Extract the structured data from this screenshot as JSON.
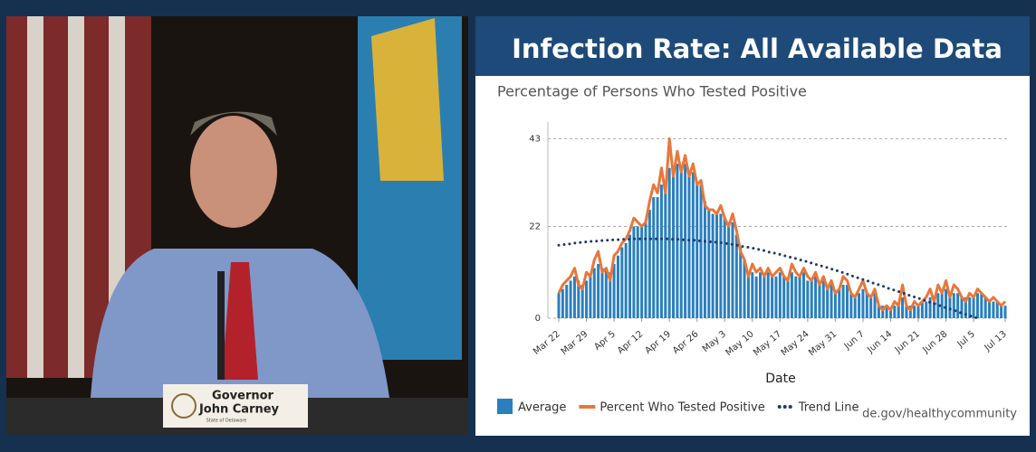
{
  "nameplate": {
    "title": "Governor",
    "name": "John Carney",
    "subtitle": "State of Delaware"
  },
  "chart_data": {
    "type": "bar",
    "title": "Infection Rate: All Available Data",
    "subtitle": "Percentage of Persons Who Tested Positive",
    "x_label": "Date",
    "source": "de.gov/healthycommunity",
    "categories": [
      "Mar 22",
      null,
      null,
      null,
      null,
      null,
      null,
      "Mar 29",
      null,
      null,
      null,
      null,
      null,
      null,
      "Apr 5",
      null,
      null,
      null,
      null,
      null,
      null,
      "Apr 12",
      null,
      null,
      null,
      null,
      null,
      null,
      "Apr 19",
      null,
      null,
      null,
      null,
      null,
      null,
      "Apr 26",
      null,
      null,
      null,
      null,
      null,
      null,
      "May 3",
      null,
      null,
      null,
      null,
      null,
      null,
      "May 10",
      null,
      null,
      null,
      null,
      null,
      null,
      "May 17",
      null,
      null,
      null,
      null,
      null,
      null,
      "May 24",
      null,
      null,
      null,
      null,
      null,
      null,
      "May 31",
      null,
      null,
      null,
      null,
      null,
      null,
      "Jun 7",
      null,
      null,
      null,
      null,
      null,
      null,
      "Jun 14",
      null,
      null,
      null,
      null,
      null,
      null,
      "Jun 21",
      null,
      null,
      null,
      null,
      null,
      null,
      "Jun 28",
      null,
      null,
      null,
      null,
      null,
      null,
      "Jul 5",
      null,
      null,
      null,
      null,
      null,
      null,
      null,
      "Jul 13"
    ],
    "ylim": [
      0,
      47
    ],
    "yticks": [
      0,
      22,
      43
    ],
    "grid": true,
    "series": [
      {
        "name": "Average",
        "type": "bar",
        "color": "#2a7fbf",
        "values": [
          6,
          7,
          8,
          9,
          10,
          9,
          8,
          9,
          10,
          12,
          13,
          12,
          12,
          11,
          13,
          15,
          17,
          18,
          20,
          22,
          22,
          22,
          23,
          26,
          29,
          29,
          32,
          30,
          36,
          35,
          37,
          35,
          37,
          35,
          35,
          32,
          32,
          28,
          26,
          25,
          25,
          25,
          24,
          23,
          23,
          20,
          17,
          14,
          11,
          11,
          10,
          11,
          10,
          11,
          10,
          10,
          11,
          10,
          9,
          11,
          10,
          10,
          11,
          9,
          9,
          10,
          8,
          9,
          7,
          8,
          6,
          7,
          8,
          8,
          6,
          5,
          6,
          7,
          6,
          5,
          6,
          3,
          3,
          3,
          2,
          3,
          3,
          5,
          3,
          3,
          3,
          3,
          4,
          4,
          5,
          4,
          6,
          6,
          7,
          5,
          6,
          6,
          5,
          5,
          5,
          5,
          6,
          6,
          5,
          4,
          4,
          4,
          3,
          3
        ]
      },
      {
        "name": "Percent Who Tested Positive",
        "type": "line",
        "color": "#e8773a",
        "values": [
          6,
          8,
          9,
          10,
          12,
          8,
          7,
          11,
          10,
          14,
          16,
          11,
          12,
          9,
          15,
          16,
          18,
          19,
          21,
          24,
          23,
          22,
          23,
          28,
          32,
          30,
          36,
          30,
          43,
          34,
          40,
          35,
          39,
          34,
          37,
          32,
          33,
          27,
          26,
          26,
          25,
          27,
          24,
          22,
          25,
          21,
          16,
          14,
          10,
          13,
          11,
          12,
          10,
          12,
          10,
          11,
          12,
          10,
          9,
          13,
          11,
          10,
          12,
          10,
          9,
          11,
          8,
          10,
          7,
          9,
          6,
          7,
          10,
          9,
          6,
          5,
          7,
          9,
          6,
          5,
          7,
          3,
          2,
          3,
          2,
          4,
          3,
          8,
          3,
          2,
          4,
          3,
          4,
          5,
          7,
          4,
          8,
          6,
          9,
          5,
          8,
          7,
          5,
          4,
          6,
          5,
          7,
          6,
          5,
          4,
          5,
          4,
          3,
          4
        ]
      },
      {
        "name": "Trend Line",
        "type": "dotted",
        "color": "#1f3a68",
        "values": [
          17.5,
          17.6,
          17.7,
          17.8,
          18.0,
          18.1,
          18.2,
          18.3,
          18.4,
          18.4,
          18.5,
          18.6,
          18.7,
          18.7,
          18.8,
          18.8,
          18.9,
          18.9,
          18.9,
          19.0,
          19.0,
          19.0,
          19.0,
          19.0,
          19.0,
          19.0,
          19.0,
          19.0,
          19.0,
          18.9,
          18.9,
          18.8,
          18.8,
          18.7,
          18.7,
          18.6,
          18.5,
          18.4,
          18.3,
          18.3,
          18.2,
          18.1,
          18.0,
          17.8,
          17.7,
          17.5,
          17.3,
          17.1,
          17.0,
          16.8,
          16.6,
          16.4,
          16.2,
          15.9,
          15.7,
          15.5,
          15.3,
          15.0,
          14.8,
          14.5,
          14.3,
          14.0,
          13.8,
          13.5,
          13.2,
          12.9,
          12.6,
          12.4,
          12.1,
          11.8,
          11.5,
          11.2,
          10.9,
          10.6,
          10.2,
          9.9,
          9.6,
          9.3,
          9.0,
          8.6,
          8.3,
          8.0,
          7.7,
          7.3,
          7.0,
          6.7,
          6.4,
          6.1,
          5.7,
          5.4,
          5.1,
          4.8,
          4.5,
          4.1,
          3.8,
          3.5,
          3.2,
          2.8,
          2.5,
          2.2,
          1.9,
          1.6,
          1.2,
          0.9,
          0.6,
          0.3,
          0.0,
          null,
          null,
          null,
          null,
          null,
          null,
          null
        ]
      }
    ]
  }
}
